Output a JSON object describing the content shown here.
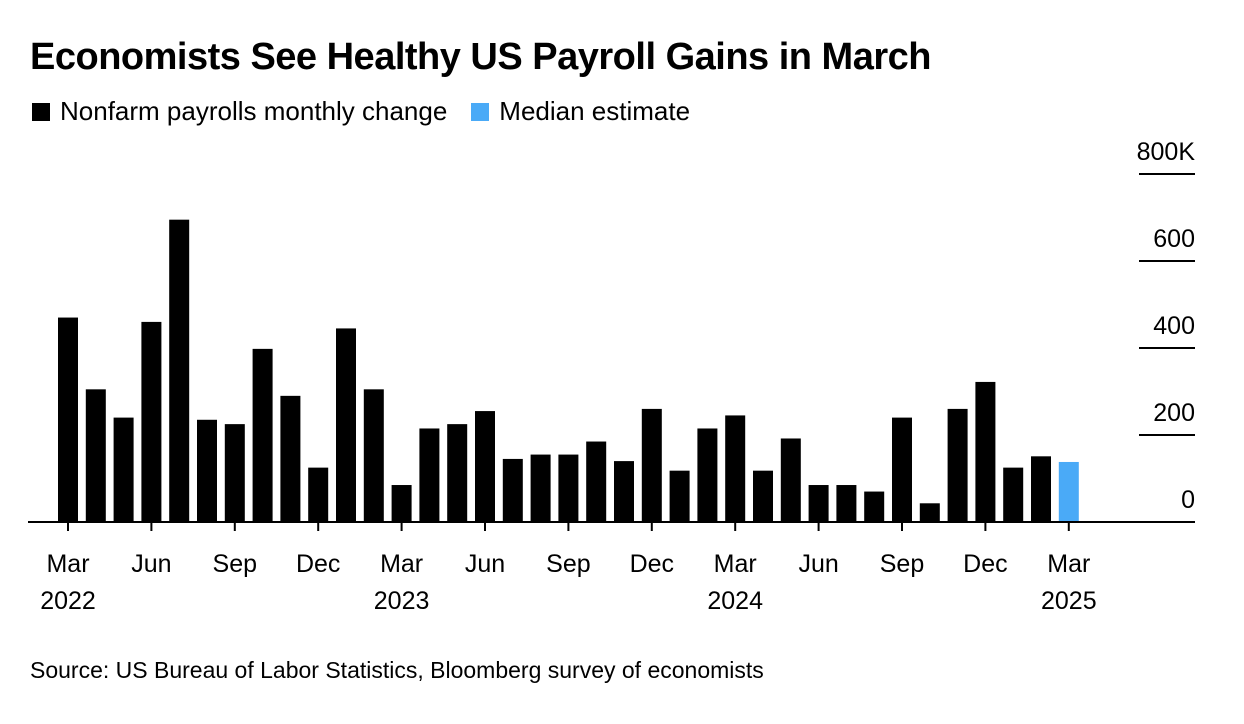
{
  "title": "Economists See Healthy US Payroll Gains in March",
  "legend": {
    "payrolls": "Nonfarm payrolls monthly change",
    "estimate": "Median estimate"
  },
  "source": "Source: US Bureau of Labor Statistics, Bloomberg survey of economists",
  "colors": {
    "payrolls": "#000000",
    "estimate": "#4aaaf7"
  },
  "chart_data": {
    "type": "bar",
    "categories": [
      "Mar 2022",
      "Apr 2022",
      "May 2022",
      "Jun 2022",
      "Jul 2022",
      "Aug 2022",
      "Sep 2022",
      "Oct 2022",
      "Nov 2022",
      "Dec 2022",
      "Jan 2023",
      "Feb 2023",
      "Mar 2023",
      "Apr 2023",
      "May 2023",
      "Jun 2023",
      "Jul 2023",
      "Aug 2023",
      "Sep 2023",
      "Oct 2023",
      "Nov 2023",
      "Dec 2023",
      "Jan 2024",
      "Feb 2024",
      "Mar 2024",
      "Apr 2024",
      "May 2024",
      "Jun 2024",
      "Jul 2024",
      "Aug 2024",
      "Sep 2024",
      "Oct 2024",
      "Nov 2024",
      "Dec 2024",
      "Jan 2025",
      "Feb 2025",
      "Mar 2025"
    ],
    "series": [
      {
        "name": "Nonfarm payrolls monthly change",
        "values": [
          470,
          305,
          240,
          460,
          695,
          235,
          225,
          398,
          290,
          125,
          445,
          305,
          85,
          215,
          225,
          255,
          145,
          155,
          155,
          185,
          140,
          260,
          118,
          215,
          245,
          118,
          192,
          85,
          85,
          70,
          240,
          43,
          260,
          322,
          125,
          151,
          null
        ]
      },
      {
        "name": "Median estimate",
        "values": [
          null,
          null,
          null,
          null,
          null,
          null,
          null,
          null,
          null,
          null,
          null,
          null,
          null,
          null,
          null,
          null,
          null,
          null,
          null,
          null,
          null,
          null,
          null,
          null,
          null,
          null,
          null,
          null,
          null,
          null,
          null,
          null,
          null,
          null,
          null,
          null,
          138
        ]
      }
    ],
    "x_ticks": [
      {
        "index": 0,
        "month": "Mar",
        "year": "2022"
      },
      {
        "index": 3,
        "month": "Jun",
        "year": ""
      },
      {
        "index": 6,
        "month": "Sep",
        "year": ""
      },
      {
        "index": 9,
        "month": "Dec",
        "year": ""
      },
      {
        "index": 12,
        "month": "Mar",
        "year": "2023"
      },
      {
        "index": 15,
        "month": "Jun",
        "year": ""
      },
      {
        "index": 18,
        "month": "Sep",
        "year": ""
      },
      {
        "index": 21,
        "month": "Dec",
        "year": ""
      },
      {
        "index": 24,
        "month": "Mar",
        "year": "2024"
      },
      {
        "index": 27,
        "month": "Jun",
        "year": ""
      },
      {
        "index": 30,
        "month": "Sep",
        "year": ""
      },
      {
        "index": 33,
        "month": "Dec",
        "year": ""
      },
      {
        "index": 36,
        "month": "Mar",
        "year": "2025"
      }
    ],
    "y_ticks": [
      {
        "value": 0,
        "label": "0"
      },
      {
        "value": 200,
        "label": "200"
      },
      {
        "value": 400,
        "label": "400"
      },
      {
        "value": 600,
        "label": "600"
      },
      {
        "value": 800,
        "label": "800K"
      }
    ],
    "ylim": [
      0,
      800
    ],
    "grid": false,
    "y_axis_position": "right",
    "legend_position": "top-left"
  }
}
